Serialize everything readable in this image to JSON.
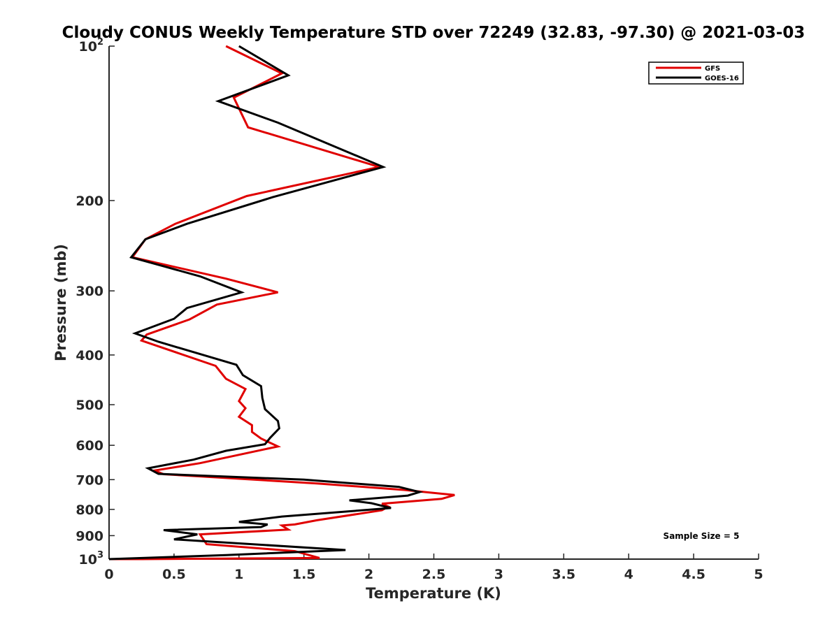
{
  "chart_data": {
    "type": "line",
    "title": "Cloudy CONUS Weekly Temperature STD over 72249 (32.83, -97.30) @ 2021-03-03",
    "xlabel": "Temperature (K)",
    "ylabel": "Pressure (mb)",
    "xlim": [
      0,
      5
    ],
    "ylim": [
      100,
      1000
    ],
    "y_scale": "log",
    "y_reversed": true,
    "grid": false,
    "legend_position": "top-right",
    "x_ticks": [
      0,
      0.5,
      1,
      1.5,
      2,
      2.5,
      3,
      3.5,
      4,
      4.5,
      5
    ],
    "x_tick_labels": [
      "0",
      "0.5",
      "1",
      "1.5",
      "2",
      "2.5",
      "3",
      "3.5",
      "4",
      "4.5",
      "5"
    ],
    "y_ticks": [
      100,
      200,
      300,
      400,
      500,
      600,
      700,
      800,
      900,
      1000
    ],
    "y_tick_labels": [
      {
        "base": "10",
        "sup": "2"
      },
      {
        "base": "200",
        "sup": ""
      },
      {
        "base": "300",
        "sup": ""
      },
      {
        "base": "400",
        "sup": ""
      },
      {
        "base": "500",
        "sup": ""
      },
      {
        "base": "600",
        "sup": ""
      },
      {
        "base": "700",
        "sup": ""
      },
      {
        "base": "800",
        "sup": ""
      },
      {
        "base": "900",
        "sup": ""
      },
      {
        "base": "10",
        "sup": "3"
      }
    ],
    "annotation": "Sample Size = 5",
    "series": [
      {
        "name": "GFS",
        "color": "#e00000",
        "points": [
          [
            0.9,
            100
          ],
          [
            1.33,
            113
          ],
          [
            0.96,
            126
          ],
          [
            1.07,
            144
          ],
          [
            2.08,
            172
          ],
          [
            1.06,
            196
          ],
          [
            0.51,
            222
          ],
          [
            0.28,
            238
          ],
          [
            0.18,
            258
          ],
          [
            0.9,
            284
          ],
          [
            1.3,
            302
          ],
          [
            0.83,
            319
          ],
          [
            0.62,
            341
          ],
          [
            0.29,
            365
          ],
          [
            0.25,
            375
          ],
          [
            0.82,
            420
          ],
          [
            0.9,
            445
          ],
          [
            1.05,
            466
          ],
          [
            1.0,
            492
          ],
          [
            1.05,
            508
          ],
          [
            1.0,
            528
          ],
          [
            1.1,
            548
          ],
          [
            1.1,
            565
          ],
          [
            1.17,
            582
          ],
          [
            1.3,
            603
          ],
          [
            0.7,
            650
          ],
          [
            0.35,
            672
          ],
          [
            0.42,
            683
          ],
          [
            1.6,
            712
          ],
          [
            2.27,
            733
          ],
          [
            2.66,
            750
          ],
          [
            2.56,
            763
          ],
          [
            2.1,
            780
          ],
          [
            2.15,
            790
          ],
          [
            2.1,
            803
          ],
          [
            1.6,
            840
          ],
          [
            1.43,
            856
          ],
          [
            1.33,
            860
          ],
          [
            1.38,
            876
          ],
          [
            0.7,
            895
          ],
          [
            0.75,
            935
          ],
          [
            1.43,
            965
          ],
          [
            1.62,
            995
          ],
          [
            0.25,
            1000
          ],
          [
            0,
            1000
          ]
        ]
      },
      {
        "name": "GOES-16",
        "color": "#000000",
        "points": [
          [
            1.0,
            100
          ],
          [
            1.38,
            114
          ],
          [
            0.84,
            128
          ],
          [
            1.3,
            141
          ],
          [
            2.11,
            172
          ],
          [
            1.26,
            197
          ],
          [
            0.6,
            222
          ],
          [
            0.28,
            238
          ],
          [
            0.17,
            258
          ],
          [
            0.7,
            281
          ],
          [
            1.02,
            302
          ],
          [
            0.6,
            324
          ],
          [
            0.5,
            340
          ],
          [
            0.2,
            363
          ],
          [
            0.38,
            377
          ],
          [
            0.98,
            418
          ],
          [
            1.03,
            438
          ],
          [
            1.17,
            460
          ],
          [
            1.18,
            485
          ],
          [
            1.2,
            510
          ],
          [
            1.3,
            538
          ],
          [
            1.31,
            556
          ],
          [
            1.24,
            580
          ],
          [
            1.2,
            597
          ],
          [
            0.9,
            615
          ],
          [
            0.65,
            640
          ],
          [
            0.3,
            665
          ],
          [
            0.38,
            682
          ],
          [
            1.5,
            700
          ],
          [
            2.23,
            723
          ],
          [
            2.39,
            740
          ],
          [
            2.3,
            752
          ],
          [
            1.85,
            768
          ],
          [
            2.02,
            778
          ],
          [
            2.17,
            795
          ],
          [
            1.33,
            826
          ],
          [
            1.0,
            846
          ],
          [
            1.22,
            856
          ],
          [
            1.17,
            866
          ],
          [
            0.42,
            878
          ],
          [
            0.68,
            895
          ],
          [
            0.5,
            915
          ],
          [
            1.82,
            960
          ],
          [
            0.9,
            982
          ],
          [
            0,
            1000
          ]
        ]
      }
    ]
  }
}
